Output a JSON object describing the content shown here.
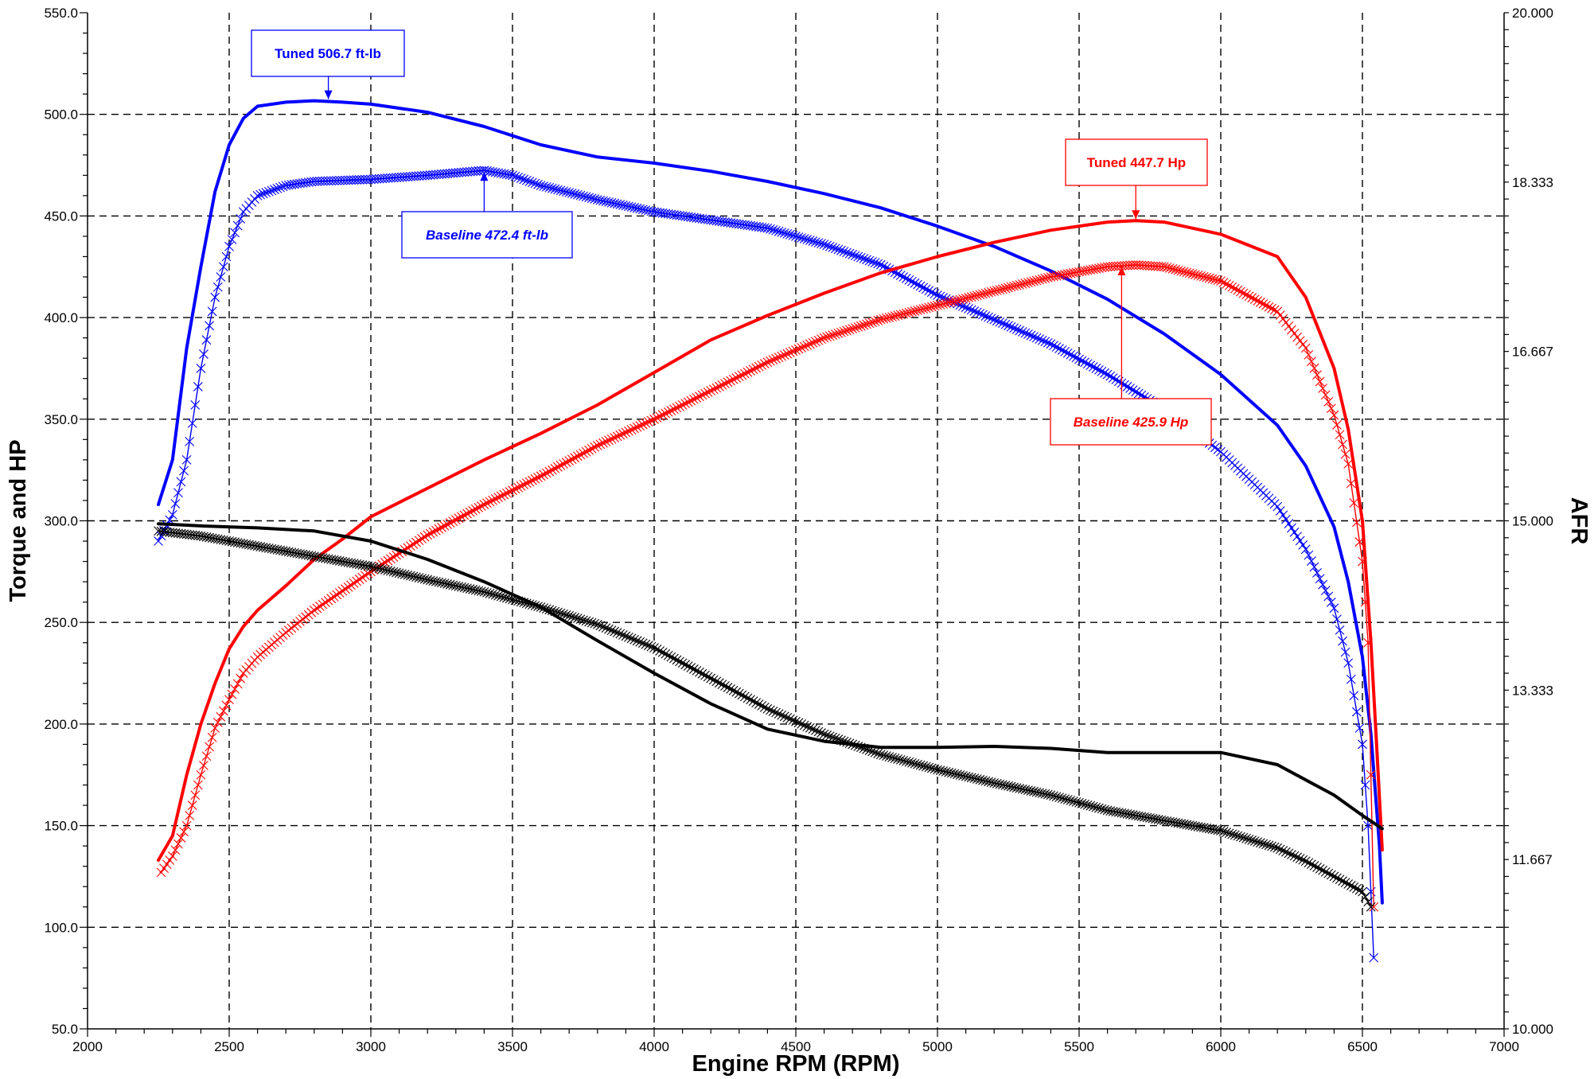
{
  "chart_data": {
    "type": "line",
    "xlabel": "Engine RPM (RPM)",
    "ylabel": "Torque and HP",
    "y2label": "AFR",
    "xlim": [
      2000,
      7000
    ],
    "ylim": [
      50,
      550
    ],
    "y2lim": [
      10,
      20
    ],
    "grid": true,
    "x_ticks": [
      "2000",
      "2500",
      "3000",
      "3500",
      "4000",
      "4500",
      "5000",
      "5500",
      "6000",
      "6500",
      "7000"
    ],
    "y_ticks": [
      "50.0",
      "100.0",
      "150.0",
      "200.0",
      "250.0",
      "300.0",
      "350.0",
      "400.0",
      "450.0",
      "500.0",
      "550.0"
    ],
    "y2_ticks": [
      "10.000",
      "11.667",
      "13.333",
      "15.000",
      "16.667",
      "18.333",
      "20.000"
    ],
    "series": [
      {
        "color": "#0000ff",
        "style": "solid",
        "axis": "left",
        "x": [
          2250,
          2300,
          2350,
          2400,
          2450,
          2500,
          2550,
          2600,
          2700,
          2800,
          2900,
          3000,
          3200,
          3400,
          3600,
          3800,
          4000,
          4200,
          4400,
          4600,
          4800,
          5000,
          5200,
          5400,
          5600,
          5800,
          6000,
          6200,
          6300,
          6400,
          6450,
          6500,
          6530,
          6560,
          6570
        ],
        "y": [
          308,
          330,
          385,
          425,
          462,
          485,
          498,
          504,
          506,
          506.7,
          506,
          505,
          501,
          494,
          485,
          479,
          476,
          472,
          467,
          461,
          454,
          445,
          435,
          423,
          409,
          392,
          372,
          347,
          327,
          297,
          270,
          233,
          195,
          140,
          112
        ]
      },
      {
        "color": "#0000ff",
        "style": "x-marker",
        "axis": "left",
        "x": [
          2250,
          2300,
          2350,
          2400,
          2450,
          2500,
          2550,
          2600,
          2700,
          2800,
          3000,
          3200,
          3400,
          3500,
          3600,
          3800,
          4000,
          4200,
          4400,
          4600,
          4800,
          5000,
          5200,
          5400,
          5600,
          5800,
          6000,
          6200,
          6300,
          6400,
          6450,
          6500,
          6520,
          6540
        ],
        "y": [
          290,
          303,
          330,
          375,
          410,
          435,
          452,
          460,
          465,
          467,
          468,
          470,
          472.4,
          470,
          465,
          458,
          452,
          448,
          444,
          436,
          426,
          411,
          399,
          387,
          372,
          355,
          334,
          307,
          286,
          257,
          230,
          190,
          150,
          85
        ]
      },
      {
        "color": "#ff0000",
        "style": "solid",
        "axis": "left",
        "x": [
          2250,
          2300,
          2350,
          2400,
          2450,
          2500,
          2550,
          2600,
          2700,
          2800,
          2900,
          3000,
          3200,
          3400,
          3600,
          3800,
          4000,
          4200,
          4400,
          4600,
          4800,
          5000,
          5200,
          5400,
          5600,
          5700,
          5800,
          6000,
          6200,
          6300,
          6400,
          6450,
          6500,
          6530,
          6550,
          6570
        ],
        "y": [
          133,
          145,
          175,
          200,
          220,
          237,
          248,
          256,
          268,
          281,
          291,
          302,
          316,
          330,
          343,
          357,
          373,
          389,
          401,
          412,
          422,
          430,
          437,
          443,
          447,
          447.7,
          447,
          441,
          430,
          410,
          375,
          345,
          300,
          240,
          190,
          138
        ]
      },
      {
        "color": "#ff0000",
        "style": "x-marker",
        "axis": "left",
        "x": [
          2260,
          2300,
          2350,
          2400,
          2450,
          2500,
          2550,
          2600,
          2700,
          2800,
          3000,
          3200,
          3400,
          3600,
          3800,
          4000,
          4200,
          4400,
          4600,
          4800,
          5000,
          5200,
          5400,
          5600,
          5700,
          5800,
          6000,
          6200,
          6300,
          6400,
          6450,
          6500,
          6520,
          6540
        ],
        "y": [
          127,
          135,
          150,
          175,
          198,
          212,
          225,
          233,
          245,
          256,
          275,
          293,
          308,
          322,
          337,
          350,
          364,
          378,
          390,
          399,
          406,
          413,
          420,
          425,
          425.9,
          425,
          418,
          403,
          385,
          352,
          328,
          280,
          240,
          110
        ]
      },
      {
        "color": "#000000",
        "style": "solid",
        "axis": "right",
        "x": [
          2250,
          2400,
          2600,
          2800,
          3000,
          3200,
          3400,
          3600,
          3800,
          4000,
          4200,
          4400,
          4600,
          4800,
          5000,
          5200,
          5400,
          5600,
          5800,
          6000,
          6200,
          6400,
          6500,
          6570
        ],
        "y": [
          14.97,
          14.95,
          14.93,
          14.9,
          14.8,
          14.62,
          14.4,
          14.15,
          13.82,
          13.5,
          13.2,
          12.95,
          12.83,
          12.77,
          12.77,
          12.78,
          12.76,
          12.72,
          12.72,
          12.72,
          12.6,
          12.3,
          12.1,
          11.97
        ]
      },
      {
        "color": "#000000",
        "style": "x-marker",
        "axis": "right",
        "x": [
          2250,
          2400,
          2600,
          2800,
          3000,
          3200,
          3400,
          3600,
          3800,
          4000,
          4200,
          4400,
          4600,
          4800,
          5000,
          5200,
          5400,
          5600,
          5800,
          6000,
          6200,
          6300,
          6400,
          6500,
          6530
        ],
        "y": [
          14.9,
          14.85,
          14.75,
          14.65,
          14.55,
          14.42,
          14.3,
          14.15,
          13.98,
          13.75,
          13.45,
          13.15,
          12.9,
          12.7,
          12.55,
          12.42,
          12.3,
          12.15,
          12.05,
          11.95,
          11.78,
          11.65,
          11.5,
          11.35,
          11.2
        ]
      }
    ],
    "annotations": [
      {
        "text": "Tuned 506.7 ft-lb",
        "color": "#0000ff",
        "italic": false,
        "target_x": 2850,
        "target_y": 506.7
      },
      {
        "text": "Baseline 472.4 ft-lb",
        "color": "#0000ff",
        "italic": true,
        "target_x": 3400,
        "target_y": 472.4
      },
      {
        "text": "Tuned 447.7 Hp",
        "color": "#ff0000",
        "italic": false,
        "target_x": 5700,
        "target_y": 447.7
      },
      {
        "text": "Baseline 425.9 Hp",
        "color": "#ff0000",
        "italic": true,
        "target_x": 5650,
        "target_y": 425.9
      }
    ]
  }
}
